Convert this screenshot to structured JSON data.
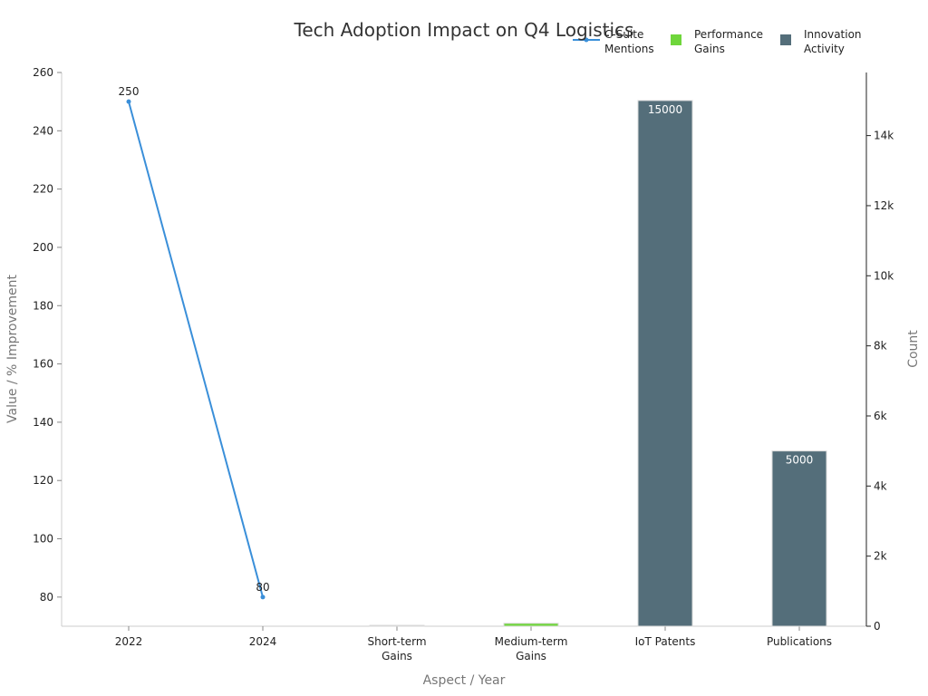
{
  "chart_data": {
    "title": "Tech Adoption Impact on Q4 Logistics",
    "xlabel": "Aspect / Year",
    "ylabel_left": "Value / % Improvement",
    "ylabel_right": "Count",
    "categories": [
      [
        "2022"
      ],
      [
        "2024"
      ],
      [
        "Short-term",
        "Gains"
      ],
      [
        "Medium-term",
        "Gains"
      ],
      [
        "IoT Patents"
      ],
      [
        "Publications"
      ]
    ],
    "ylim_left": [
      70,
      260
    ],
    "yticks_left": [
      80,
      100,
      120,
      140,
      160,
      180,
      200,
      220,
      240,
      260
    ],
    "ylim_right": [
      0,
      15800
    ],
    "yticks_right": [
      0,
      2000,
      4000,
      6000,
      8000,
      10000,
      12000,
      14000
    ],
    "ytick_labels_right": [
      "0",
      "2k",
      "4k",
      "6k",
      "8k",
      "10k",
      "12k",
      "14k"
    ],
    "grid": false,
    "legend_position": "top-right",
    "series": [
      {
        "name": "C-Suite Mentions",
        "type": "line",
        "axis": "left",
        "color": "#3a8fd9",
        "points": [
          {
            "category": "2022",
            "value": 250,
            "label": "250"
          },
          {
            "category": "2024",
            "value": 80,
            "label": "80"
          }
        ]
      },
      {
        "name": "Performance Gains",
        "type": "bar",
        "axis": "left",
        "color": "#6fd63b",
        "points": [
          {
            "category": "Short-term Gains",
            "value": 70
          },
          {
            "category": "Medium-term Gains",
            "value": 71
          }
        ]
      },
      {
        "name": "Innovation Activity",
        "type": "bar",
        "axis": "right",
        "color": "#546e7a",
        "points": [
          {
            "category": "IoT Patents",
            "value": 15000,
            "label": "15000"
          },
          {
            "category": "Publications",
            "value": 5000,
            "label": "5000"
          }
        ]
      }
    ],
    "legend": [
      {
        "name": [
          "C-Suite",
          "Mentions"
        ],
        "marker": "line",
        "color": "#3a8fd9"
      },
      {
        "name": [
          "Performance",
          "Gains"
        ],
        "marker": "square",
        "color": "#6fd63b"
      },
      {
        "name": [
          "Innovation",
          "Activity"
        ],
        "marker": "square",
        "color": "#546e7a"
      }
    ]
  }
}
